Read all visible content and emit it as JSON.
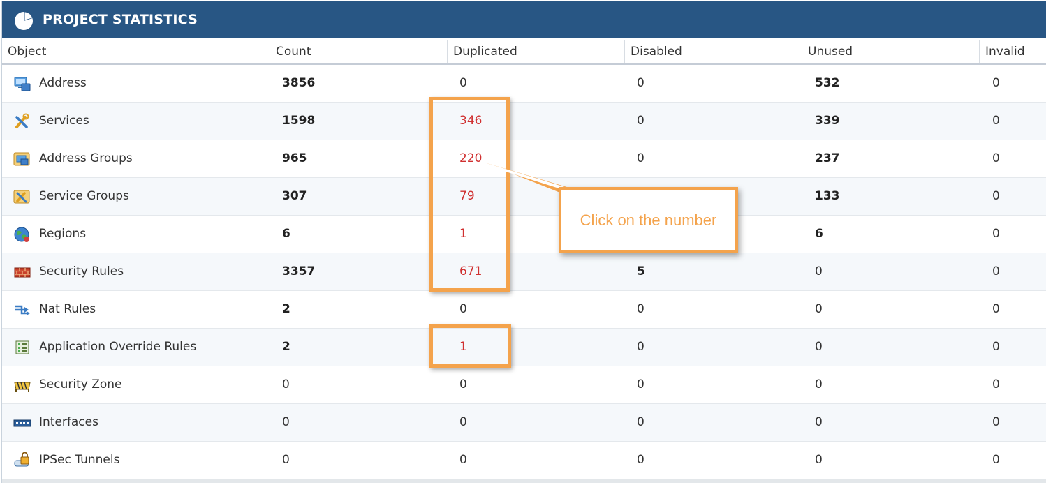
{
  "header": {
    "title": "PROJECT STATISTICS",
    "icon": "pie-chart-icon"
  },
  "columns": [
    "Object",
    "Count",
    "Duplicated",
    "Disabled",
    "Unused",
    "Invalid"
  ],
  "rows": [
    {
      "object": "Address",
      "icon": "address-icon",
      "count": "3856",
      "duplicated": "0",
      "disabled": "0",
      "unused": "532",
      "invalid": "0"
    },
    {
      "object": "Services",
      "icon": "services-icon",
      "count": "1598",
      "duplicated": "346",
      "disabled": "0",
      "unused": "339",
      "invalid": "0"
    },
    {
      "object": "Address Groups",
      "icon": "address-groups-icon",
      "count": "965",
      "duplicated": "220",
      "disabled": "0",
      "unused": "237",
      "invalid": "0"
    },
    {
      "object": "Service Groups",
      "icon": "service-groups-icon",
      "count": "307",
      "duplicated": "79",
      "disabled": "",
      "unused": "133",
      "invalid": "0"
    },
    {
      "object": "Regions",
      "icon": "regions-globe-icon",
      "count": "6",
      "duplicated": "1",
      "disabled": "",
      "unused": "6",
      "invalid": "0"
    },
    {
      "object": "Security Rules",
      "icon": "firewall-icon",
      "count": "3357",
      "duplicated": "671",
      "disabled": "5",
      "unused": "0",
      "invalid": "0"
    },
    {
      "object": "Nat Rules",
      "icon": "nat-rules-icon",
      "count": "2",
      "duplicated": "0",
      "disabled": "0",
      "unused": "0",
      "invalid": "0"
    },
    {
      "object": "Application Override Rules",
      "icon": "app-override-icon",
      "count": "2",
      "duplicated": "1",
      "disabled": "0",
      "unused": "0",
      "invalid": "0"
    },
    {
      "object": "Security Zone",
      "icon": "security-zone-icon",
      "count": "0",
      "duplicated": "0",
      "disabled": "0",
      "unused": "0",
      "invalid": "0"
    },
    {
      "object": "Interfaces",
      "icon": "interfaces-icon",
      "count": "0",
      "duplicated": "0",
      "disabled": "0",
      "unused": "0",
      "invalid": "0"
    },
    {
      "object": "IPSec Tunnels",
      "icon": "ipsec-tunnels-icon",
      "count": "0",
      "duplicated": "0",
      "disabled": "0",
      "unused": "0",
      "invalid": "0"
    }
  ],
  "annotation": {
    "callout_text": "Click on the number"
  },
  "colors": {
    "header_bg": "#285684",
    "highlight_red": "#d03030",
    "annotation_orange": "#f4a34c"
  }
}
